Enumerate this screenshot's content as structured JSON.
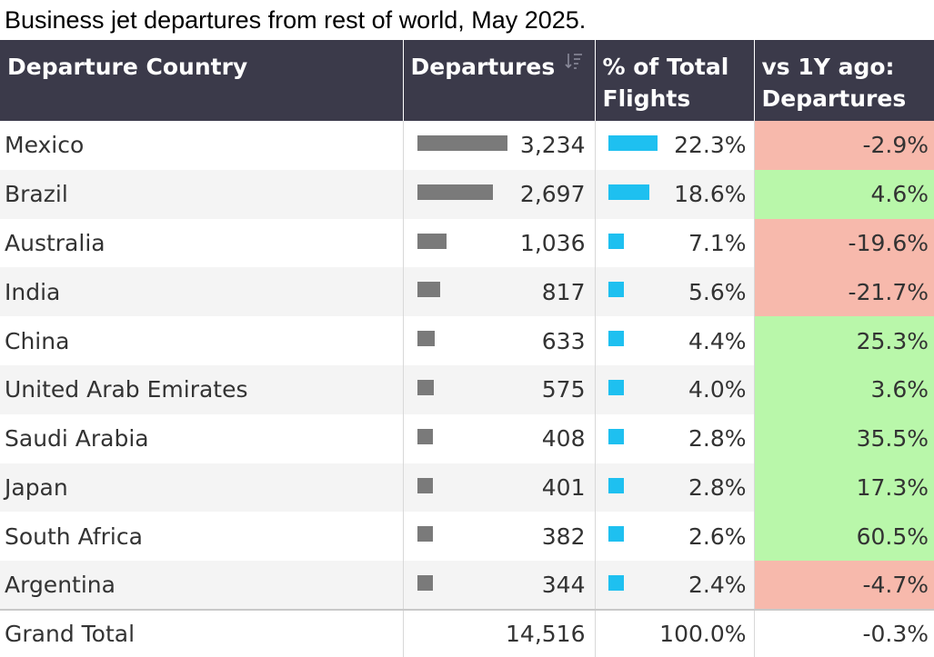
{
  "title": "Business jet departures from rest of world, May 2025.",
  "headers": {
    "country": "Departure Country",
    "departures": "Departures",
    "pct_total": "% of Total Flights",
    "vs_1y": "vs 1Y ago: Departures"
  },
  "sort_icon": "sort-descending-icon",
  "colors": {
    "header_bg": "#3b3a4a",
    "departure_bar": "#7a7a7a",
    "share_bar": "#1ec0f0",
    "negative_change": "#f7b9ac",
    "positive_change": "#b9f7aa"
  },
  "chart_data": {
    "type": "table",
    "columns": [
      "Departure Country",
      "Departures",
      "% of Total Flights",
      "vs 1Y ago: Departures"
    ],
    "rows": [
      {
        "country": "Mexico",
        "departures": "3,234",
        "departures_value": 3234,
        "pct": "22.3%",
        "pct_value": 22.3,
        "change": "-2.9%",
        "change_value": -2.9
      },
      {
        "country": "Brazil",
        "departures": "2,697",
        "departures_value": 2697,
        "pct": "18.6%",
        "pct_value": 18.6,
        "change": "4.6%",
        "change_value": 4.6
      },
      {
        "country": "Australia",
        "departures": "1,036",
        "departures_value": 1036,
        "pct": "7.1%",
        "pct_value": 7.1,
        "change": "-19.6%",
        "change_value": -19.6
      },
      {
        "country": "India",
        "departures": "817",
        "departures_value": 817,
        "pct": "5.6%",
        "pct_value": 5.6,
        "change": "-21.7%",
        "change_value": -21.7
      },
      {
        "country": "China",
        "departures": "633",
        "departures_value": 633,
        "pct": "4.4%",
        "pct_value": 4.4,
        "change": "25.3%",
        "change_value": 25.3
      },
      {
        "country": "United Arab Emirates",
        "departures": "575",
        "departures_value": 575,
        "pct": "4.0%",
        "pct_value": 4.0,
        "change": "3.6%",
        "change_value": 3.6
      },
      {
        "country": "Saudi Arabia",
        "departures": "408",
        "departures_value": 408,
        "pct": "2.8%",
        "pct_value": 2.8,
        "change": "35.5%",
        "change_value": 35.5
      },
      {
        "country": "Japan",
        "departures": "401",
        "departures_value": 401,
        "pct": "2.8%",
        "pct_value": 2.8,
        "change": "17.3%",
        "change_value": 17.3
      },
      {
        "country": "South Africa",
        "departures": "382",
        "departures_value": 382,
        "pct": "2.6%",
        "pct_value": 2.6,
        "change": "60.5%",
        "change_value": 60.5
      },
      {
        "country": "Argentina",
        "departures": "344",
        "departures_value": 344,
        "pct": "2.4%",
        "pct_value": 2.4,
        "change": "-4.7%",
        "change_value": -4.7
      }
    ],
    "total": {
      "label": "Grand Total",
      "departures": "14,516",
      "pct": "100.0%",
      "change": "-0.3%"
    }
  }
}
